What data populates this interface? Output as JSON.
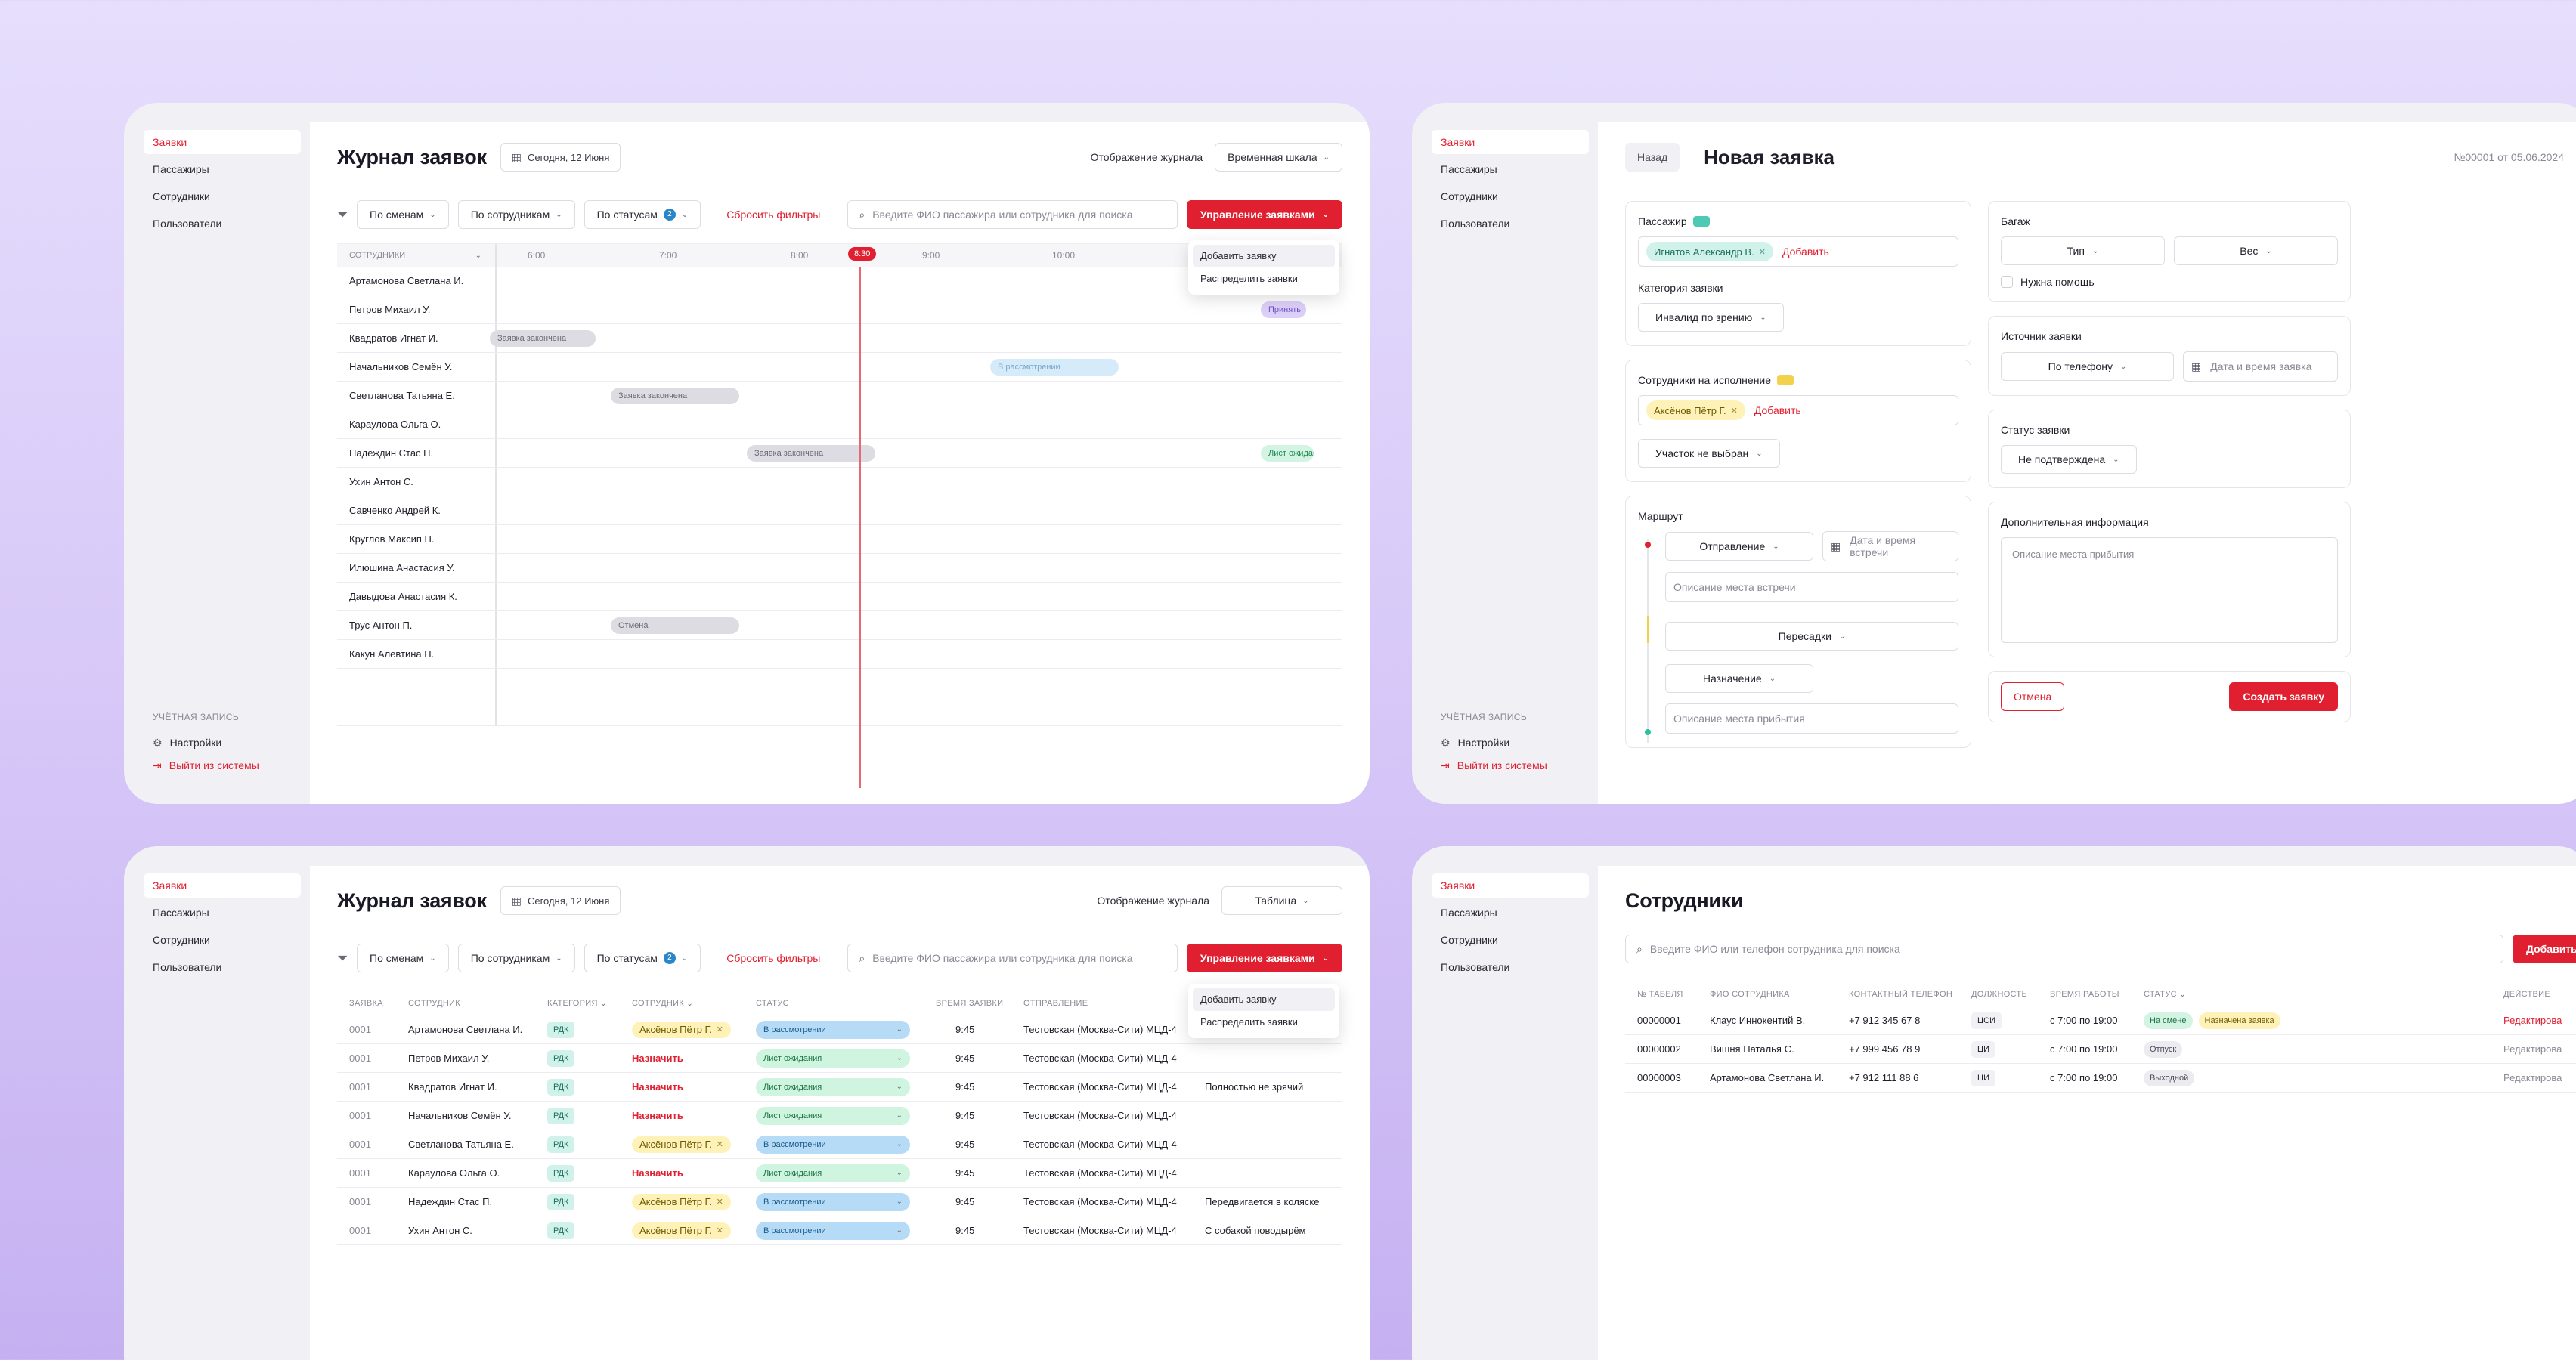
{
  "nav": {
    "items": [
      "Заявки",
      "Пассажиры",
      "Сотрудники",
      "Пользователи"
    ],
    "account_label": "УЧЁТНАЯ ЗАПИСЬ",
    "settings": "Настройки",
    "logout": "Выйти из системы"
  },
  "journal": {
    "title": "Журнал заявок",
    "date": "Сегодня, 12 Июня",
    "view_label": "Отображение журнала",
    "view_timeline": "Временная шкала",
    "view_table": "Таблица",
    "filters": [
      "По сменам",
      "По сотрудникам",
      "По статусам"
    ],
    "status_count": "2",
    "reset": "Сбросить фильтры",
    "search_placeholder": "Введите ФИО пассажира или сотрудника для поиска",
    "manage": "Управление заявками",
    "menu": [
      "Добавить заявку",
      "Распределить заявки"
    ]
  },
  "timeline": {
    "column_header": "СОТРУДНИКИ",
    "times": [
      "6:00",
      "7:00",
      "8:00",
      "9:00",
      "10:00"
    ],
    "now": "8:30",
    "employees": [
      "Артамонова Светлана И.",
      "Петров Михаил У.",
      "Квадратов Игнат И.",
      "Начальников Семён У.",
      "Светланова Татьяна Е.",
      "Караулова Ольга О.",
      "Надеждин Стас П.",
      "Ухин Антон С.",
      "Савченко Андрей К.",
      "Круглов Максип П.",
      "Илюшина Анастасия У.",
      "Давыдова Анастасия К.",
      "Трус Антон П.",
      "Какун Алевтина П."
    ],
    "bars": [
      {
        "row": 1,
        "text": "Принять",
        "color": "purple"
      },
      {
        "row": 2,
        "text": "Заявка закончена",
        "color": "gray"
      },
      {
        "row": 3,
        "text": "В рассмотрении",
        "color": "blue"
      },
      {
        "row": 4,
        "text": "Заявка закончена",
        "color": "gray"
      },
      {
        "row": 6,
        "text": "Заявка закончена",
        "color": "gray"
      },
      {
        "row": 6,
        "text": "Лист ожидания",
        "color": "green"
      },
      {
        "row": 12,
        "text": "Отмена",
        "color": "gray"
      }
    ]
  },
  "form": {
    "back": "Назад",
    "title": "Новая заявка",
    "number": "№00001 от 05.06.2024",
    "passenger_label": "Пассажир",
    "passenger_chip": "Игнатов Александр В.",
    "add": "Добавить",
    "category_label": "Категория заявки",
    "category_value": "Инвалид по зрению",
    "staff_label": "Сотрудники на исполнение",
    "staff_chip": "Аксёнов Пётр Г.",
    "section_value": "Участок не выбран",
    "route_label": "Маршрут",
    "departure": "Отправление",
    "meet_datetime": "Дата и время встречи",
    "meet_place": "Описание места встречи",
    "transfers": "Пересадки",
    "destination": "Назначение",
    "arrival_place": "Описание места прибытия",
    "baggage_label": "Багаж",
    "type": "Тип",
    "weight": "Вес",
    "need_help": "Нужна помощь",
    "source_label": "Источник заявки",
    "source_value": "По телефону",
    "request_datetime": "Дата и время заявка",
    "status_label": "Статус заявки",
    "status_value": "Не подтверждена",
    "extra_label": "Дополнительная информация",
    "extra_placeholder": "Описание места прибытия",
    "cancel": "Отмена",
    "create": "Создать заявку"
  },
  "table": {
    "headers": [
      "ЗАЯВКА",
      "СОТРУДНИК",
      "КАТЕГОРИЯ",
      "СОТРУДНИК",
      "СТАТУС",
      "ВРЕМЯ ЗАЯВКИ",
      "ОТПРАВЛЕНИЕ"
    ],
    "rows": [
      {
        "id": "0001",
        "name": "Артамонова Светлана И.",
        "cat": "РДК",
        "staff": "Аксёнов Пётр Г.",
        "status": "В рассмотрении",
        "status_color": "blue",
        "time": "9:45",
        "dep": "Тестовская (Москва-Сити) МЦД-4",
        "note": ""
      },
      {
        "id": "0001",
        "name": "Петров Михаил У.",
        "cat": "РДК",
        "staff": "Назначить",
        "status": "Лист ожидания",
        "status_color": "green",
        "time": "9:45",
        "dep": "Тестовская (Москва-Сити) МЦД-4",
        "note": ""
      },
      {
        "id": "0001",
        "name": "Квадратов Игнат И.",
        "cat": "РДК",
        "staff": "Назначить",
        "status": "Лист ожидания",
        "status_color": "green",
        "time": "9:45",
        "dep": "Тестовская (Москва-Сити) МЦД-4",
        "note": "Полностью не зрячий"
      },
      {
        "id": "0001",
        "name": "Начальников Семён У.",
        "cat": "РДК",
        "staff": "Назначить",
        "status": "Лист ожидания",
        "status_color": "green",
        "time": "9:45",
        "dep": "Тестовская (Москва-Сити) МЦД-4",
        "note": ""
      },
      {
        "id": "0001",
        "name": "Светланова Татьяна Е.",
        "cat": "РДК",
        "staff": "Аксёнов Пётр Г.",
        "status": "В рассмотрении",
        "status_color": "blue",
        "time": "9:45",
        "dep": "Тестовская (Москва-Сити) МЦД-4",
        "note": ""
      },
      {
        "id": "0001",
        "name": "Караулова Ольга О.",
        "cat": "РДК",
        "staff": "Назначить",
        "status": "Лист ожидания",
        "status_color": "green",
        "time": "9:45",
        "dep": "Тестовская (Москва-Сити) МЦД-4",
        "note": ""
      },
      {
        "id": "0001",
        "name": "Надеждин Стас П.",
        "cat": "РДК",
        "staff": "Аксёнов Пётр Г.",
        "status": "В рассмотрении",
        "status_color": "blue",
        "time": "9:45",
        "dep": "Тестовская (Москва-Сити) МЦД-4",
        "note": "Передвигается в коляске"
      },
      {
        "id": "0001",
        "name": "Ухин Антон С.",
        "cat": "РДК",
        "staff": "Аксёнов Пётр Г.",
        "status": "В рассмотрении",
        "status_color": "blue",
        "time": "9:45",
        "dep": "Тестовская (Москва-Сити) МЦД-4",
        "note": "С собакой поводырём"
      }
    ]
  },
  "staff": {
    "title": "Сотрудники",
    "search_placeholder": "Введите ФИО или телефон сотрудника для поиска",
    "add": "Добавить со",
    "headers": [
      "№ ТАБЕЛЯ",
      "ФИО СОТРУДНИКА",
      "КОНТАКТНЫЙ ТЕЛЕФОН",
      "ДОЛЖНОСТЬ",
      "ВРЕМЯ РАБОТЫ",
      "СТАТУС",
      "ДЕЙСТВИЕ"
    ],
    "rows": [
      {
        "num": "00000001",
        "name": "Клаус Иннокентий В.",
        "phone": "+7 912 345 67 8",
        "role": "ЦСИ",
        "hours": "с 7:00 по 19:00",
        "status": "На смене",
        "status2": "Назначена заявка",
        "action": "Редактирова",
        "active": true
      },
      {
        "num": "00000002",
        "name": "Вишня Наталья С.",
        "phone": "+7 999 456 78 9",
        "role": "ЦИ",
        "hours": "с 7:00 по 19:00",
        "status": "Отпуск",
        "status2": "",
        "action": "Редактирова",
        "active": false
      },
      {
        "num": "00000003",
        "name": "Артамонова Светлана И.",
        "phone": "+7 912 111 88 6",
        "role": "ЦИ",
        "hours": "с 7:00 по 19:00",
        "status": "Выходной",
        "status2": "",
        "action": "Редактирова",
        "active": false
      }
    ]
  }
}
